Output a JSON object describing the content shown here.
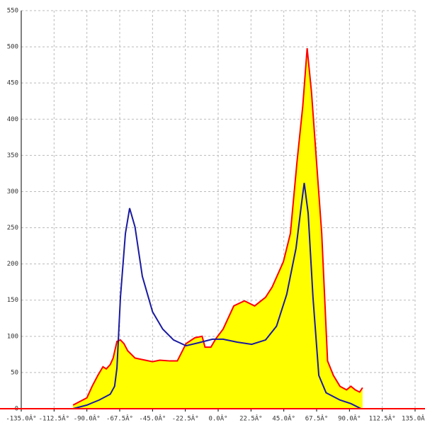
{
  "chart_data": {
    "type": "area",
    "xlim": [
      -135,
      135
    ],
    "ylim": [
      0,
      550
    ],
    "xticks": [
      {
        "value": -135,
        "label": "-135.0Â°"
      },
      {
        "value": -112.5,
        "label": "-112.5Â°"
      },
      {
        "value": -90,
        "label": "-90.0Â°"
      },
      {
        "value": -67.5,
        "label": "-67.5Â°"
      },
      {
        "value": -45,
        "label": "-45.0Â°"
      },
      {
        "value": -22.5,
        "label": "-22.5Â°"
      },
      {
        "value": 0,
        "label": "0.0Â°"
      },
      {
        "value": 22.5,
        "label": "22.5Â°"
      },
      {
        "value": 45,
        "label": "45.0Â°"
      },
      {
        "value": 67.5,
        "label": "67.5Â°"
      },
      {
        "value": 90,
        "label": "90.0Â°"
      },
      {
        "value": 112.5,
        "label": "112.5Â°"
      },
      {
        "value": 135,
        "label": "135.0Â°"
      }
    ],
    "yticks": [
      0,
      50,
      100,
      150,
      200,
      250,
      300,
      350,
      400,
      450,
      500,
      550
    ],
    "grid": true,
    "series": [
      {
        "color": "#ff0000",
        "fill": "#ffff00",
        "x": [
          -99.5,
          -90,
          -86.4,
          -82.5,
          -79,
          -76.7,
          -74,
          -72,
          -69.4,
          -67,
          -64.6,
          -62,
          -57,
          -50,
          -45,
          -40,
          -33,
          -28,
          -22,
          -16,
          -11,
          -9,
          -5,
          -1.5,
          3.4,
          10.7,
          18,
          25,
          32.5,
          37,
          44.7,
          49.5,
          54,
          58,
          61,
          64,
          71,
          75,
          79,
          83.5,
          88,
          91,
          94,
          97,
          99
        ],
        "values": [
          5,
          15,
          31,
          46,
          58,
          55,
          61,
          70,
          93,
          95,
          90,
          80,
          70,
          67,
          65,
          67,
          66,
          66,
          90,
          98,
          100,
          85,
          85,
          97,
          110,
          142,
          149,
          142,
          154,
          168,
          203,
          242,
          340,
          418,
          498,
          437,
          242,
          66,
          46,
          31,
          26,
          31,
          26,
          23,
          29
        ]
      },
      {
        "color": "#1a1aa0",
        "x": [
          -99.5,
          -90,
          -81.6,
          -74,
          -71,
          -69.4,
          -67,
          -63.6,
          -60.7,
          -57,
          -52,
          -45,
          -38,
          -30.6,
          -22,
          -13.6,
          -3.9,
          3.4,
          13,
          23,
          32.5,
          40,
          47,
          53.4,
          57,
          59,
          61.7,
          65,
          69,
          74,
          83.5,
          91,
          98
        ],
        "values": [
          0,
          5,
          12,
          20,
          31,
          56,
          154,
          242,
          277,
          251,
          183,
          134,
          110,
          95,
          87,
          91,
          96,
          96,
          92,
          89,
          95,
          114,
          158,
          222,
          281,
          312,
          270,
          154,
          46,
          22,
          12,
          7,
          0
        ]
      }
    ]
  }
}
